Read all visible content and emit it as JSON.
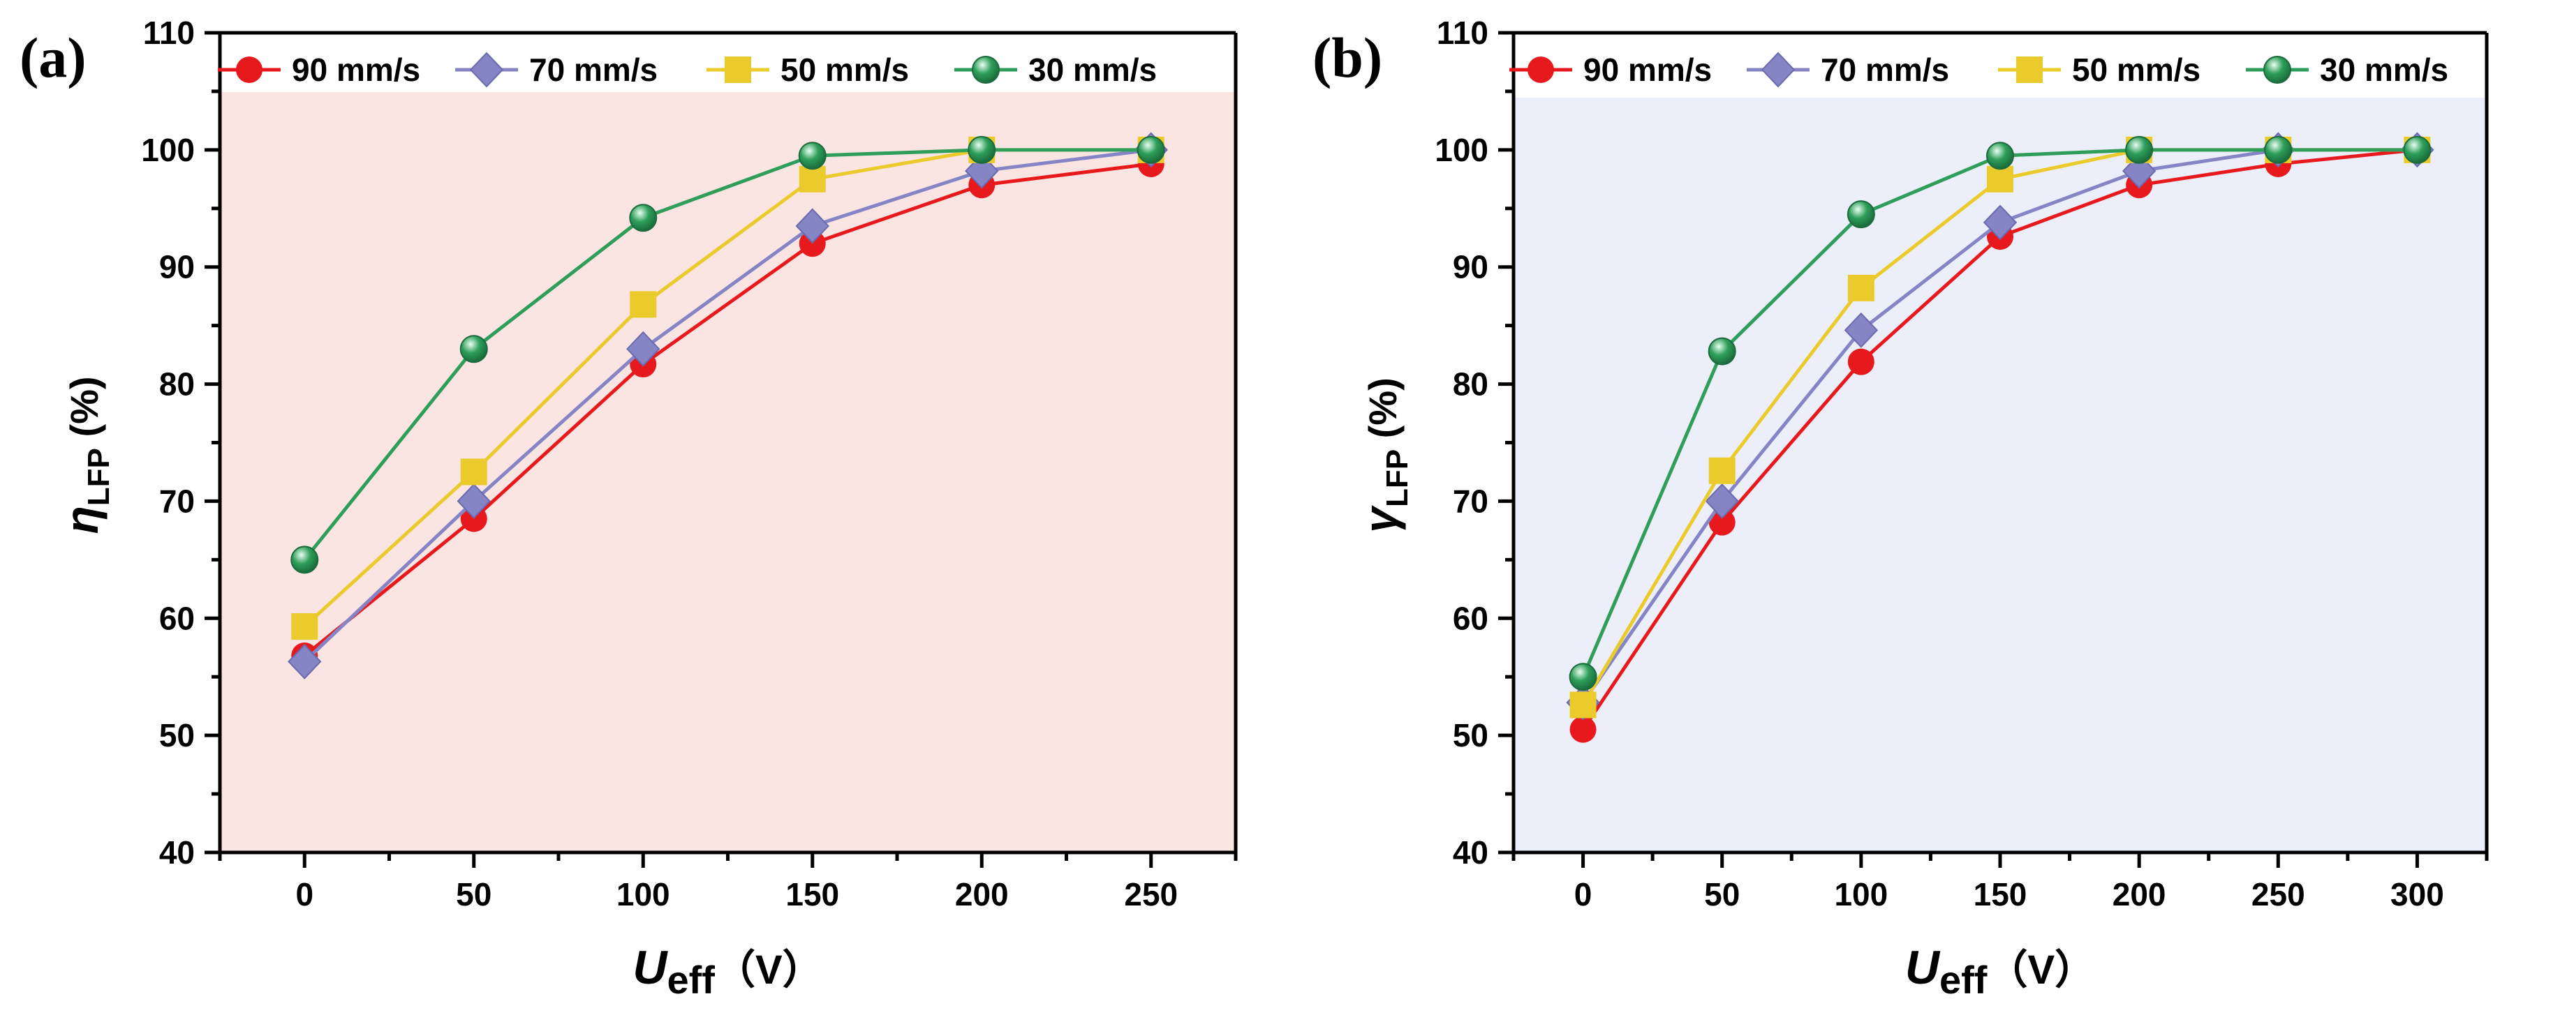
{
  "chart_data": [
    {
      "type": "line",
      "panel_label": "(a)",
      "background": "#fbe5e2",
      "x": [
        0,
        50,
        100,
        150,
        200,
        250
      ],
      "xlim": [
        -25,
        275
      ],
      "ylim": [
        40,
        110
      ],
      "x_ticks": [
        "0",
        "50",
        "100",
        "150",
        "200",
        "250"
      ],
      "y_ticks": [
        "40",
        "50",
        "60",
        "70",
        "80",
        "90",
        "100",
        "110"
      ],
      "ylabel_main": "η",
      "ylabel_sub": "LFP",
      "ylabel_unit": " (%)",
      "xlabel_main": "U",
      "xlabel_sub": "eff",
      "xlabel_unit": "（V）",
      "grid": false,
      "legend_position": "top",
      "series": [
        {
          "name": "90 mm/s",
          "color": "#e8191d",
          "marker": "circle",
          "values": [
            56.8,
            68.5,
            81.7,
            92.0,
            97.0,
            98.8
          ]
        },
        {
          "name": "70 mm/s",
          "color": "#8585c6",
          "marker": "diamond",
          "values": [
            56.3,
            70.0,
            83.0,
            93.5,
            98.2,
            100.0
          ]
        },
        {
          "name": "50 mm/s",
          "color": "#ebcb2c",
          "marker": "square",
          "values": [
            59.3,
            72.5,
            86.8,
            97.5,
            100.0,
            100.0
          ]
        },
        {
          "name": "30 mm/s",
          "color": "#2e9e5a",
          "marker": "sphere",
          "values": [
            65.0,
            83.0,
            94.2,
            99.5,
            100.0,
            100.0
          ]
        }
      ]
    },
    {
      "type": "line",
      "panel_label": "(b)",
      "background": "#eceff9",
      "x": [
        0,
        50,
        100,
        150,
        200,
        250,
        300
      ],
      "xlim": [
        -25,
        325
      ],
      "ylim": [
        40,
        110
      ],
      "x_ticks": [
        "0",
        "50",
        "100",
        "150",
        "200",
        "250",
        "300"
      ],
      "y_ticks": [
        "40",
        "50",
        "60",
        "70",
        "80",
        "90",
        "100",
        "110"
      ],
      "ylabel_main": "γ",
      "ylabel_sub": "LFP",
      "ylabel_unit": " (%)",
      "xlabel_main": "U",
      "xlabel_sub": "eff",
      "xlabel_unit": "（V）",
      "grid": false,
      "legend_position": "top",
      "series": [
        {
          "name": "90 mm/s",
          "color": "#e8191d",
          "marker": "circle",
          "values": [
            50.5,
            68.2,
            81.9,
            92.6,
            97.0,
            98.8,
            100.0
          ]
        },
        {
          "name": "70 mm/s",
          "color": "#8585c6",
          "marker": "diamond",
          "values": [
            52.8,
            70.0,
            84.6,
            93.8,
            98.2,
            100.0,
            100.0
          ]
        },
        {
          "name": "50 mm/s",
          "color": "#ebcb2c",
          "marker": "square",
          "values": [
            52.6,
            72.6,
            88.2,
            97.5,
            100.0,
            100.0,
            100.0
          ]
        },
        {
          "name": "30 mm/s",
          "color": "#2e9e5a",
          "marker": "sphere",
          "values": [
            55.0,
            82.8,
            94.5,
            99.5,
            100.0,
            100.0,
            100.0
          ]
        }
      ]
    }
  ]
}
